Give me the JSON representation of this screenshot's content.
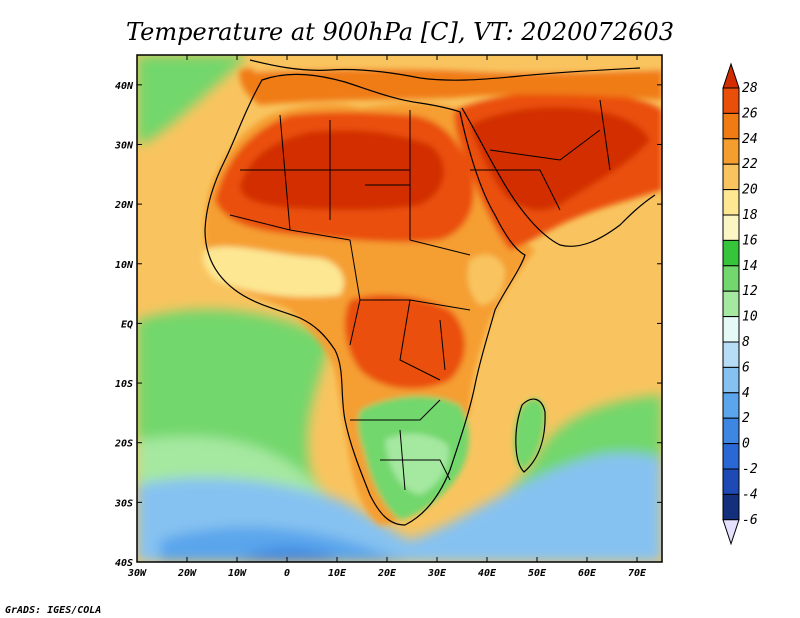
{
  "title": "Temperature at 900hPa [C], VT: 2020072603",
  "credit": "GrADS: IGES/COLA",
  "map": {
    "lon_range": [
      -30,
      75
    ],
    "lat_range": [
      -40,
      45
    ],
    "lon_ticks": [
      "30W",
      "20W",
      "10W",
      "0",
      "10E",
      "20E",
      "30E",
      "40E",
      "50E",
      "60E",
      "70E"
    ],
    "lat_ticks": [
      "40N",
      "30N",
      "20N",
      "10N",
      "EQ",
      "10S",
      "20S",
      "30S",
      "40S"
    ]
  },
  "colorbar": {
    "levels": [
      "28",
      "26",
      "24",
      "22",
      "20",
      "18",
      "16",
      "14",
      "12",
      "10",
      "8",
      "6",
      "4",
      "2",
      "0",
      "-2",
      "-4",
      "-6"
    ],
    "colors": [
      "#d22d00",
      "#ea4f09",
      "#f07b12",
      "#f59e30",
      "#f9c45f",
      "#fde793",
      "#fcf6c4",
      "#35c43a",
      "#72d76c",
      "#a5e8a0",
      "#e5f9f7",
      "#b6dcf6",
      "#86c2f1",
      "#5aa5ec",
      "#3d86e2",
      "#2a68d6",
      "#1e4ab6",
      "#14307c"
    ]
  },
  "colors": {
    "background": "#ffffff",
    "ocean_warm": "#f9c45f",
    "ocean_cool": "#72d76c",
    "ocean_cold": "#86c2f1",
    "land_hot": "#ea4f09",
    "land_warm": "#f59e30",
    "land_mild": "#72d76c"
  }
}
